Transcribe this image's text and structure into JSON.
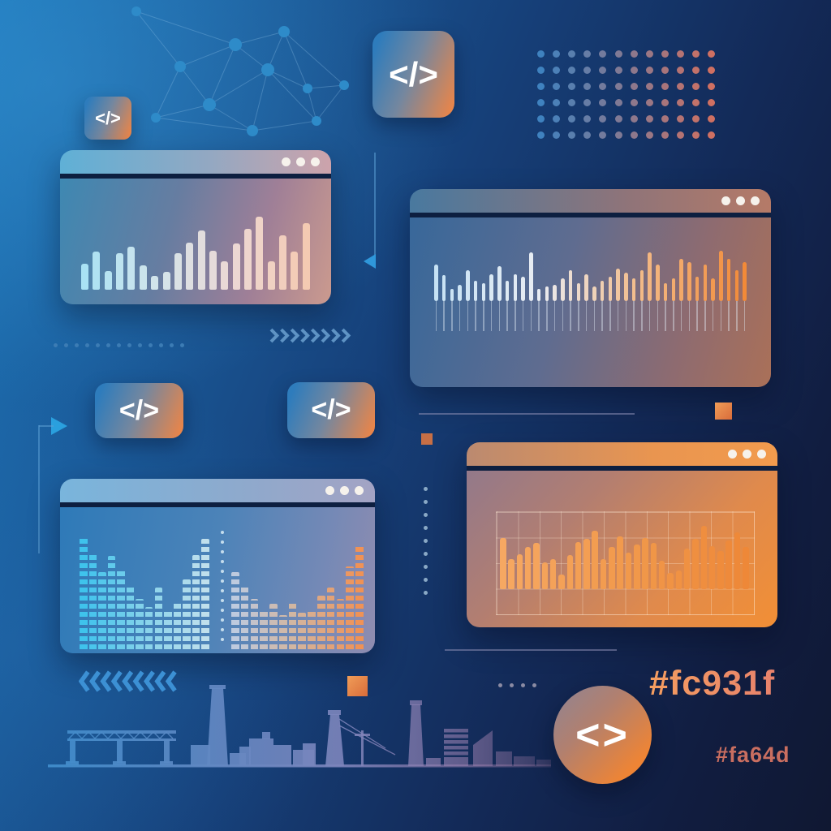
{
  "labels": {
    "hex_primary": "#fc931f",
    "hex_secondary": "#fa64d"
  },
  "icons": {
    "code_chip_glyph": "</>",
    "code_badge_glyph": "<>"
  },
  "palette": {
    "background_light_blue": "#1d77ba",
    "background_dark_navy": "#101832",
    "accent_orange": "#ef8a3d",
    "accent_blue": "#2f88c8",
    "window_separator": "#0d1f40",
    "hex_primary_color": "#f0925c",
    "hex_secondary_color": "#c96e60",
    "stem_color": "rgba(228,238,248,0.42)",
    "node_color": "#2e8bc9",
    "edge_color": "rgba(150,200,235,0.30)"
  },
  "windows": [
    {
      "id": "top-left",
      "control_dots": 3,
      "chart": {
        "type": "bar",
        "values": [
          32,
          47,
          23,
          45,
          53,
          30,
          17,
          22,
          45,
          58,
          73,
          48,
          35,
          57,
          75,
          90,
          35,
          67,
          47,
          82
        ],
        "color_stops": [
          "#a9e2f4",
          "#d3e4ea",
          "#ecd8d4",
          "#f4cab2"
        ]
      }
    },
    {
      "id": "top-right",
      "control_dots": 3,
      "chart": {
        "type": "lollipop-bar",
        "stem_length": 37,
        "values": [
          45,
          32,
          15,
          20,
          38,
          25,
          22,
          33,
          43,
          25,
          33,
          30,
          60,
          15,
          18,
          20,
          28,
          38,
          22,
          33,
          18,
          25,
          30,
          40,
          35,
          28,
          38,
          60,
          45,
          22,
          28,
          52,
          48,
          30,
          45,
          28,
          62,
          52,
          38,
          48
        ],
        "color_stops": [
          "#c6e2f4",
          "#e9edf3",
          "#f3ba86",
          "#f28a38"
        ]
      }
    },
    {
      "id": "bottom-left",
      "control_dots": 3,
      "chart": {
        "type": "striped-terrain",
        "divider_dots": 12,
        "left_values": [
          140,
          118,
          95,
          115,
          100,
          80,
          62,
          52,
          76,
          48,
          60,
          86,
          116,
          136
        ],
        "right_values": [
          95,
          80,
          62,
          50,
          56,
          42,
          58,
          45,
          50,
          66,
          76,
          62,
          102,
          130
        ],
        "left_color_stops": [
          "#3fc3ec",
          "#86d2ea",
          "#bfdfec"
        ],
        "right_color_stops": [
          "#becade",
          "#d4b49c",
          "#f09255"
        ]
      }
    },
    {
      "id": "bottom-right",
      "control_dots": 3,
      "chart": {
        "type": "bar-with-grid",
        "grid_cols": 12,
        "grid_rows": 4,
        "values": [
          63,
          37,
          43,
          52,
          57,
          33,
          37,
          18,
          42,
          58,
          62,
          72,
          37,
          52,
          65,
          45,
          55,
          63,
          57,
          35,
          20,
          23,
          50,
          62,
          78,
          53,
          47,
          60,
          70,
          52
        ],
        "color_stops": [
          "#f6a862",
          "#f19a4c",
          "#ee8838"
        ]
      }
    }
  ],
  "decor": {
    "network": {
      "nodes": [
        [
          28,
          12,
          6
        ],
        [
          210,
          37,
          7
        ],
        [
          150,
          53,
          8
        ],
        [
          82,
          80,
          7
        ],
        [
          190,
          84,
          8
        ],
        [
          239,
          107,
          6
        ],
        [
          284,
          103,
          6
        ],
        [
          118,
          127,
          8
        ],
        [
          52,
          143,
          6
        ],
        [
          171,
          159,
          7
        ],
        [
          250,
          147,
          6
        ]
      ],
      "edges": [
        [
          0,
          2
        ],
        [
          0,
          3
        ],
        [
          2,
          1
        ],
        [
          2,
          4
        ],
        [
          2,
          3
        ],
        [
          3,
          7
        ],
        [
          3,
          8
        ],
        [
          7,
          8
        ],
        [
          7,
          9
        ],
        [
          7,
          4
        ],
        [
          4,
          1
        ],
        [
          4,
          5
        ],
        [
          1,
          5
        ],
        [
          5,
          6
        ],
        [
          5,
          10
        ],
        [
          6,
          10
        ],
        [
          9,
          10
        ],
        [
          9,
          4
        ],
        [
          8,
          9
        ],
        [
          2,
          7
        ],
        [
          4,
          10
        ],
        [
          1,
          6
        ]
      ]
    },
    "dot_grid": {
      "cols": 12,
      "rows": 6,
      "start_color": "#3f82bf",
      "end_color": "#cf7062"
    },
    "dots_row": {
      "count": 13,
      "color": "#3c7cb4"
    },
    "chevrons_right": {
      "count": 8,
      "direction": "right",
      "color": "#5e93c4"
    },
    "chevrons_left": {
      "count": 9,
      "direction": "left",
      "color": "#3c90d4"
    },
    "vertical_dots": {
      "count": 9,
      "color": "#8aa9c6"
    },
    "mini_dots": {
      "count": 4,
      "color": "#8b8ba3"
    },
    "divider_dots_color": "rgba(225,242,250,0.8)"
  }
}
